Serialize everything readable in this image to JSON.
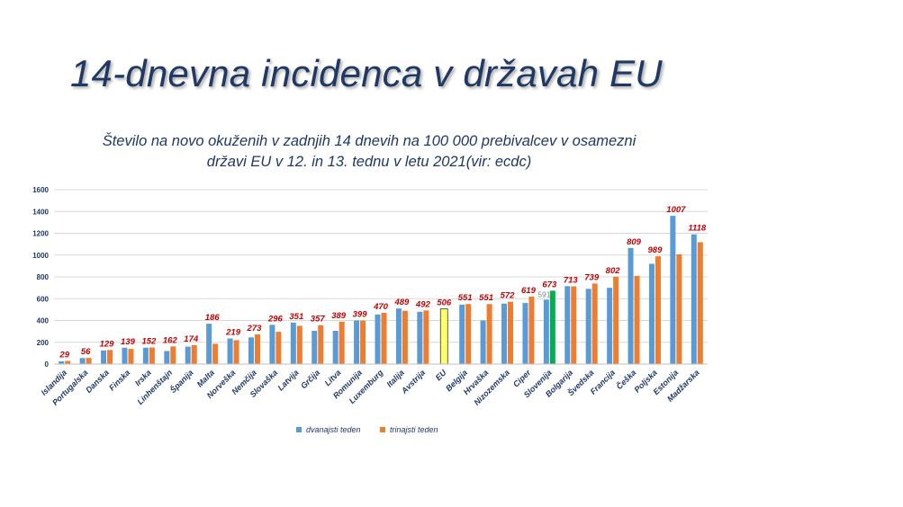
{
  "slide": {
    "title": "14-dnevna incidenca v državah EU"
  },
  "chart_data": {
    "type": "bar",
    "title": "Število na novo okuženih v zadnjih 14 dnevih na 100 000 prebivalcev v osamezni državi EU v 12. in 13. tednu v letu 2021(vir: ecdc)",
    "xlabel": "",
    "ylabel": "",
    "ylim": [
      0,
      1600
    ],
    "yticks": [
      "0",
      "200",
      "400",
      "600",
      "800",
      "1000",
      "1200",
      "1400",
      "1600"
    ],
    "grid": true,
    "legend_position": "bottom",
    "categories": [
      "Islandija",
      "Portugalska",
      "Danska",
      "Finska",
      "Irska",
      "Linhenštajn",
      "Španija",
      "Malta",
      "Norveška",
      "Nemčija",
      "Slovaška",
      "Latvija",
      "Grčija",
      "Litva",
      "Romunija",
      "Luxemburg",
      "Italija",
      "Avstrija",
      "EU",
      "Belgija",
      "Hrvaška",
      "Nizozemska",
      "Ciper",
      "Slovenija",
      "Bolgarija",
      "Švedska",
      "Francija",
      "Češka",
      "Poljska",
      "Estonija",
      "Madžarska"
    ],
    "series": [
      {
        "name": "dvanajsti teden",
        "color": "#5b9bd5",
        "values": [
          25,
          55,
          125,
          150,
          150,
          120,
          160,
          370,
          235,
          245,
          360,
          380,
          305,
          305,
          400,
          455,
          510,
          480,
          0,
          545,
          400,
          555,
          560,
          591,
          715,
          690,
          700,
          1065,
          920,
          1360,
          1190
        ]
      },
      {
        "name": "trinajsti teden",
        "color": "#ed7d31",
        "values": [
          29,
          56,
          129,
          139,
          152,
          162,
          174,
          186,
          219,
          273,
          296,
          351,
          357,
          389,
          399,
          470,
          489,
          492,
          0,
          551,
          551,
          572,
          619,
          673,
          713,
          739,
          802,
          809,
          989,
          1007,
          1118
        ]
      }
    ],
    "data_labels": [
      "29",
      "56",
      "129",
      "139",
      "152",
      "162",
      "174",
      "186",
      "219",
      "273",
      "296",
      "351",
      "357",
      "389",
      "399",
      "470",
      "489",
      "492",
      "506",
      "551",
      "551",
      "572",
      "619",
      "673",
      "713",
      "739",
      "802",
      "809",
      "989",
      "1007",
      "1118"
    ],
    "eu_bar": {
      "category_index": 18,
      "value": 506,
      "color": "#ffff66"
    },
    "slovenia_highlight": {
      "category_index": 23,
      "week12_label": "591",
      "week13_color": "#00b050"
    },
    "colors": {
      "title": "#1f3864",
      "chart_title": "#1f3864",
      "axis_text": "#1f3864",
      "data_label": "#c00000",
      "grid": "#d9d9d9"
    }
  }
}
